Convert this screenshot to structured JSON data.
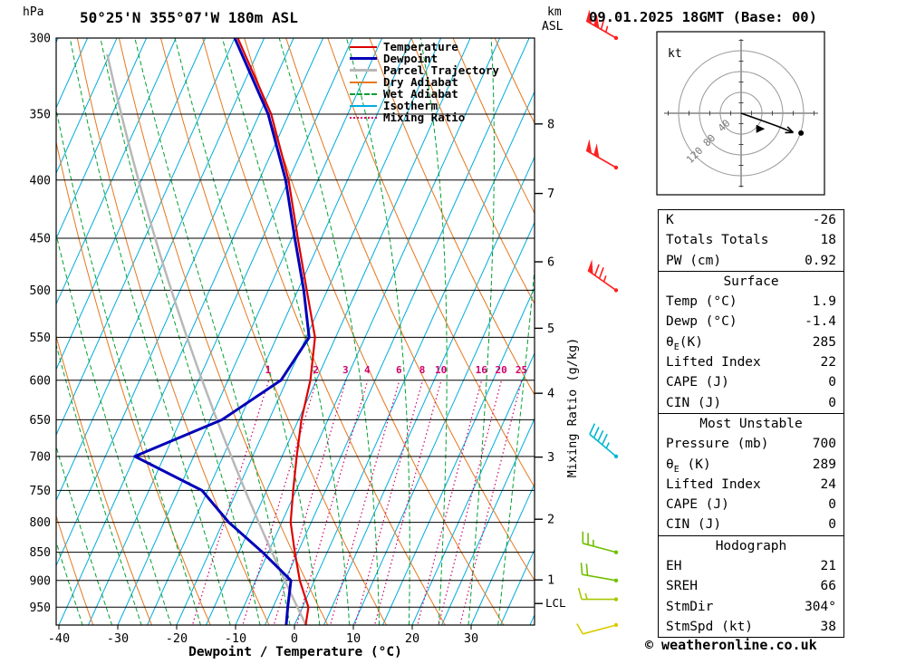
{
  "header": {
    "pressure_unit": "hPa",
    "title": "50°25'N 355°07'W 180m ASL",
    "datetime": "09.01.2025 18GMT (Base: 00)",
    "km_label": "km",
    "asl_label": "ASL"
  },
  "footer": {
    "xlabel": "Dewpoint / Temperature (°C)",
    "copyright": "© weatheronline.co.uk"
  },
  "legend": {
    "items": [
      {
        "label": "Temperature",
        "color": "#dd0000",
        "dash": "",
        "w": 2.2
      },
      {
        "label": "Dewpoint",
        "color": "#0000b8",
        "dash": "",
        "w": 3
      },
      {
        "label": "Parcel Trajectory",
        "color": "#b8b8b8",
        "dash": "",
        "w": 2.5
      },
      {
        "label": "Dry Adiabat",
        "color": "#e6781e",
        "dash": "",
        "w": 1
      },
      {
        "label": "Wet Adiabat",
        "color": "#00a032",
        "dash": "5,3",
        "w": 1
      },
      {
        "label": "Isotherm",
        "color": "#00acdc",
        "dash": "",
        "w": 1
      },
      {
        "label": "Mixing Ratio",
        "color": "#d0006a",
        "dash": "2,3",
        "w": 1.2
      }
    ]
  },
  "axes": {
    "pressure_ticks": [
      300,
      350,
      400,
      450,
      500,
      550,
      600,
      650,
      700,
      750,
      800,
      850,
      900,
      950
    ],
    "temp_ticks": [
      -40,
      -30,
      -20,
      -10,
      0,
      10,
      20,
      30
    ],
    "km_ticks": [
      1,
      2,
      3,
      4,
      5,
      6,
      7,
      8
    ],
    "lcl_label": "LCL",
    "mixing_ratio_label": "Mixing Ratio (g/kg)",
    "mixing_ratio_values": [
      1,
      2,
      3,
      4,
      6,
      8,
      10,
      16,
      20,
      25
    ]
  },
  "chart_data": {
    "type": "line",
    "title": "Skew-T log-P thermodynamic diagram",
    "x_axis": {
      "label": "Dewpoint / Temperature (°C)",
      "surface_range_C": [
        -40,
        40
      ]
    },
    "y_axis": {
      "label": "hPa",
      "scale": "log-pressure",
      "range_hPa": [
        300,
        985
      ]
    },
    "surface_pressure_hPa": 985,
    "series": [
      {
        "name": "Temperature",
        "color": "#dd0000",
        "points_p_T": [
          [
            985,
            1.9
          ],
          [
            950,
            1.0
          ],
          [
            900,
            -2.5
          ],
          [
            850,
            -5.5
          ],
          [
            800,
            -8.5
          ],
          [
            750,
            -10.5
          ],
          [
            700,
            -12.5
          ],
          [
            650,
            -14.5
          ],
          [
            600,
            -16.0
          ],
          [
            550,
            -18.5
          ],
          [
            500,
            -23.5
          ],
          [
            450,
            -29.0
          ],
          [
            400,
            -35.0
          ],
          [
            350,
            -43.0
          ],
          [
            300,
            -54.5
          ]
        ]
      },
      {
        "name": "Dewpoint",
        "color": "#0000b8",
        "points_p_T": [
          [
            985,
            -1.4
          ],
          [
            950,
            -2.5
          ],
          [
            900,
            -4.0
          ],
          [
            850,
            -11.0
          ],
          [
            800,
            -19.0
          ],
          [
            750,
            -26.0
          ],
          [
            700,
            -40.0
          ],
          [
            650,
            -28.0
          ],
          [
            600,
            -21.0
          ],
          [
            550,
            -19.5
          ],
          [
            500,
            -24.0
          ],
          [
            450,
            -29.5
          ],
          [
            400,
            -35.5
          ],
          [
            350,
            -43.5
          ],
          [
            300,
            -55.0
          ]
        ]
      },
      {
        "name": "Parcel Trajectory",
        "color": "#b8b8b8",
        "theta_K": 276.3,
        "start_p": 985
      }
    ],
    "wind_barbs": [
      {
        "p": 300,
        "speed_kt": 115,
        "dir_deg": 300,
        "color": "#ff2020"
      },
      {
        "p": 390,
        "speed_kt": 100,
        "dir_deg": 300,
        "color": "#ff2020"
      },
      {
        "p": 500,
        "speed_kt": 75,
        "dir_deg": 305,
        "color": "#ff2020"
      },
      {
        "p": 700,
        "speed_kt": 45,
        "dir_deg": 310,
        "color": "#00b8d0"
      },
      {
        "p": 850,
        "speed_kt": 25,
        "dir_deg": 285,
        "color": "#70c000"
      },
      {
        "p": 900,
        "speed_kt": 20,
        "dir_deg": 280,
        "color": "#70c000"
      },
      {
        "p": 935,
        "speed_kt": 15,
        "dir_deg": 270,
        "color": "#a8c800"
      },
      {
        "p": 985,
        "speed_kt": 10,
        "dir_deg": 255,
        "color": "#d8cc00"
      }
    ]
  },
  "hodograph": {
    "unit": "kt",
    "rings_kt": [
      40,
      80,
      120
    ],
    "ring_labels": [
      "40",
      "80",
      "120"
    ],
    "trace_kt": [
      [
        0,
        0
      ],
      [
        40,
        14
      ],
      [
        70,
        25
      ],
      [
        100,
        37
      ]
    ],
    "marker_dot_kt": [
      115,
      38
    ],
    "marker_tri_kt": [
      36,
      30
    ]
  },
  "stats": {
    "sections": [
      {
        "rows": [
          [
            "K",
            "-26"
          ],
          [
            "Totals Totals",
            "18"
          ],
          [
            "PW (cm)",
            "0.92"
          ]
        ]
      },
      {
        "header": "Surface",
        "rows": [
          [
            "Temp (°C)",
            "1.9"
          ],
          [
            "Dewp (°C)",
            "-1.4"
          ],
          [
            "θE(K)",
            "285"
          ],
          [
            "Lifted Index",
            "22"
          ],
          [
            "CAPE (J)",
            "0"
          ],
          [
            "CIN (J)",
            "0"
          ]
        ]
      },
      {
        "header": "Most Unstable",
        "rows": [
          [
            "Pressure (mb)",
            "700"
          ],
          [
            "θE (K)",
            "289"
          ],
          [
            "Lifted Index",
            "24"
          ],
          [
            "CAPE (J)",
            "0"
          ],
          [
            "CIN (J)",
            "0"
          ]
        ]
      },
      {
        "header": "Hodograph",
        "rows": [
          [
            "EH",
            "21"
          ],
          [
            "SREH",
            "66"
          ],
          [
            "StmDir",
            "304°"
          ],
          [
            "StmSpd (kt)",
            "38"
          ]
        ]
      }
    ]
  }
}
